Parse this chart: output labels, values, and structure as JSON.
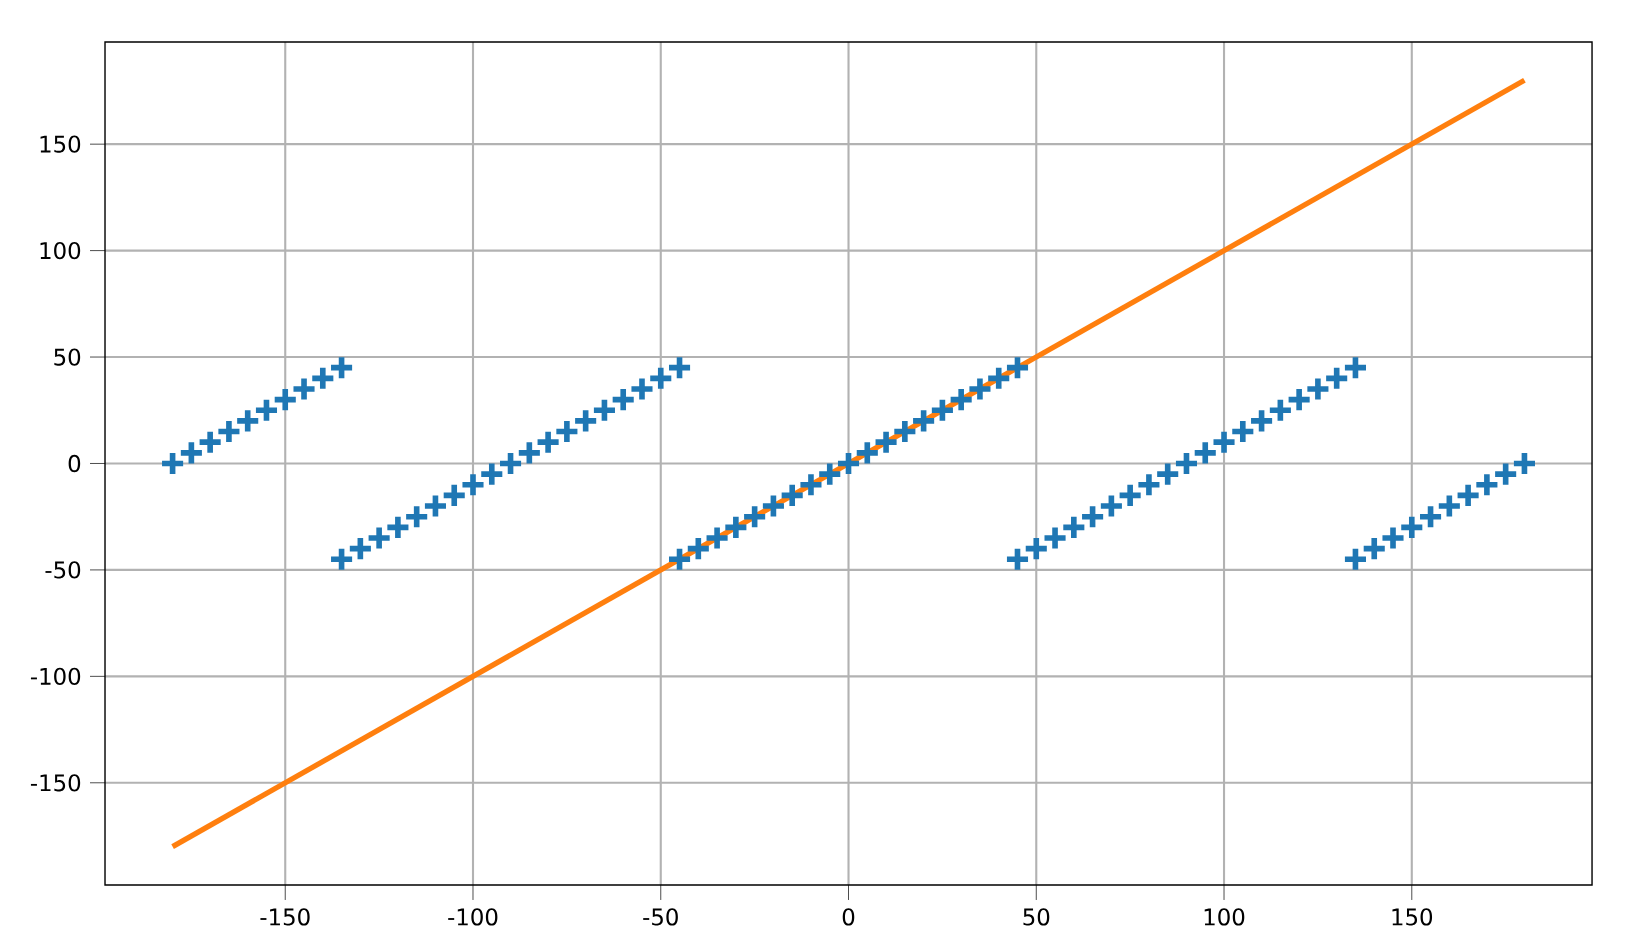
{
  "chart_data": {
    "type": "scatter",
    "x": [
      -180,
      -175,
      -170,
      -165,
      -160,
      -155,
      -150,
      -145,
      -140,
      -135,
      -135,
      -130,
      -125,
      -120,
      -115,
      -110,
      -105,
      -100,
      -95,
      -90,
      -85,
      -80,
      -75,
      -70,
      -65,
      -60,
      -55,
      -50,
      -45,
      -45,
      -40,
      -35,
      -30,
      -25,
      -20,
      -15,
      -10,
      -5,
      0,
      5,
      10,
      15,
      20,
      25,
      30,
      35,
      40,
      45,
      45,
      50,
      55,
      60,
      65,
      70,
      75,
      80,
      85,
      90,
      95,
      100,
      105,
      110,
      115,
      120,
      125,
      130,
      135,
      135,
      140,
      145,
      150,
      155,
      160,
      165,
      170,
      175,
      180
    ],
    "series": [
      {
        "color": "#1f77b4",
        "marker": "cross",
        "values": [
          0,
          5,
          10,
          15,
          20,
          25,
          30,
          35,
          40,
          45,
          -45,
          -40,
          -35,
          -30,
          -25,
          -20,
          -15,
          -10,
          -5,
          0,
          5,
          10,
          15,
          20,
          25,
          30,
          35,
          40,
          45,
          -45,
          -40,
          -35,
          -30,
          -25,
          -20,
          -15,
          -10,
          -5,
          0,
          5,
          10,
          15,
          20,
          25,
          30,
          35,
          40,
          45,
          -45,
          -40,
          -35,
          -30,
          -25,
          -20,
          -15,
          -10,
          -5,
          0,
          5,
          10,
          15,
          20,
          25,
          30,
          35,
          40,
          45,
          -45,
          -40,
          -35,
          -30,
          -25,
          -20,
          -15,
          -10,
          -5,
          0
        ]
      },
      {
        "type": "line",
        "color": "#ff7f0e",
        "marker": "none",
        "x": [
          -180,
          180
        ],
        "values": [
          -180,
          180
        ]
      }
    ],
    "xlim": [
      -198,
      198
    ],
    "ylim": [
      -198,
      198
    ],
    "xticks": [
      -150,
      -100,
      -50,
      0,
      50,
      100,
      150
    ],
    "yticks": [
      -150,
      -100,
      -50,
      0,
      50,
      100,
      150
    ],
    "grid": true
  }
}
